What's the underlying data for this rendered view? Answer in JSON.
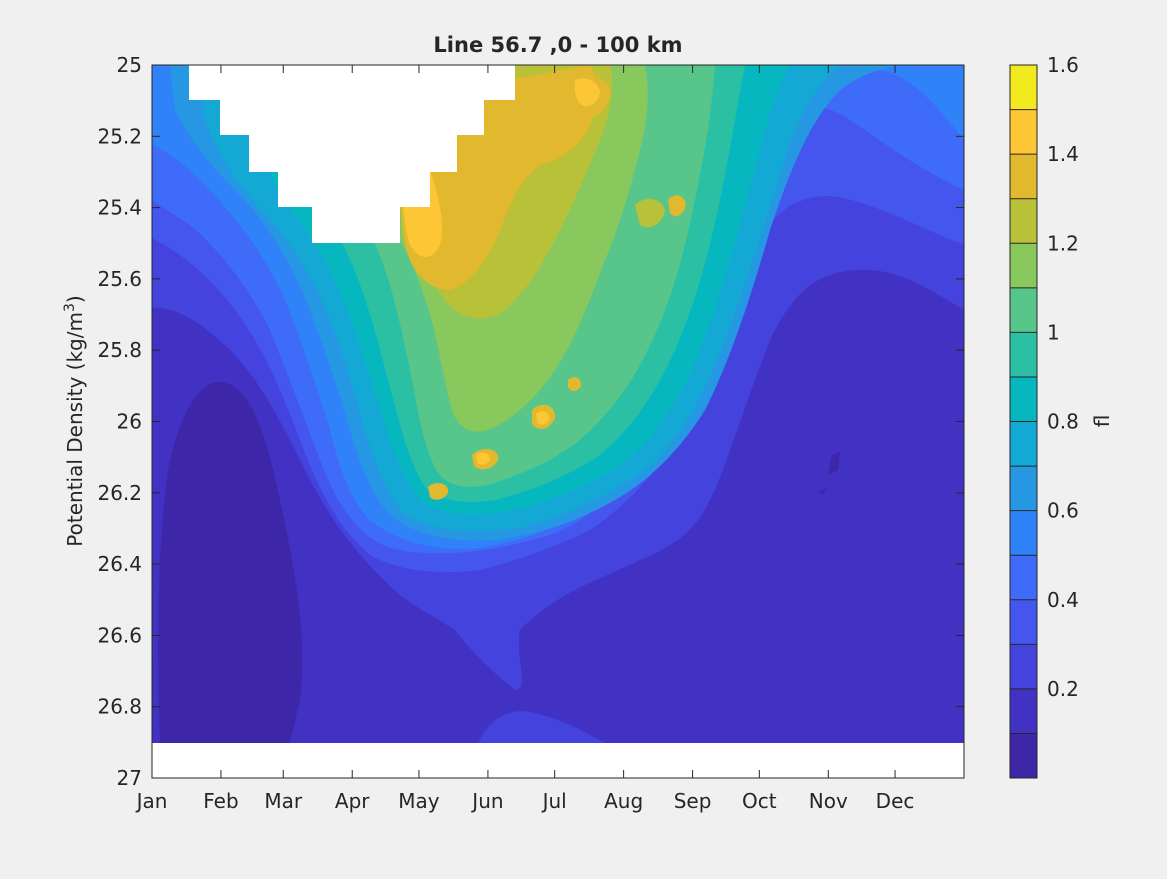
{
  "chart_data": {
    "type": "heatmap",
    "title": "Line 56.7 ,0 - 100 km",
    "xlabel": "",
    "ylabel": "Potential Density (kg/m³)",
    "ylabel_base": "Potential Density (kg/m",
    "ylabel_sup": "3",
    "ylabel_close": ")",
    "x_ticks": [
      "Jan",
      "Feb",
      "Mar",
      "Apr",
      "May",
      "Jun",
      "Jul",
      "Aug",
      "Sep",
      "Oct",
      "Nov",
      "Dec"
    ],
    "y_ticks": [
      "25",
      "25.2",
      "25.4",
      "25.6",
      "25.8",
      "26",
      "26.2",
      "26.4",
      "26.6",
      "26.8",
      "27"
    ],
    "ylim": [
      25,
      27
    ],
    "y_reversed": true,
    "colorbar": {
      "label": "fl",
      "ticks": [
        "0.2",
        "0.4",
        "0.6",
        "0.8",
        "1",
        "1.2",
        "1.4",
        "1.6"
      ],
      "range": [
        0,
        1.6
      ],
      "levels": 16,
      "colors": [
        "#3e26a8",
        "#4232c4",
        "#4443dd",
        "#4456ee",
        "#3e6cf8",
        "#2f82f8",
        "#2697e3",
        "#14a8d5",
        "#06b7c0",
        "#2bc0a4",
        "#58c58a",
        "#88c85c",
        "#b8c138",
        "#e1b82e",
        "#fcc635",
        "#f2e91f"
      ]
    },
    "blank_regions": [
      "no data in upper-left (Jan–Jun, 25–25.5)",
      "no data below 26.9"
    ]
  }
}
